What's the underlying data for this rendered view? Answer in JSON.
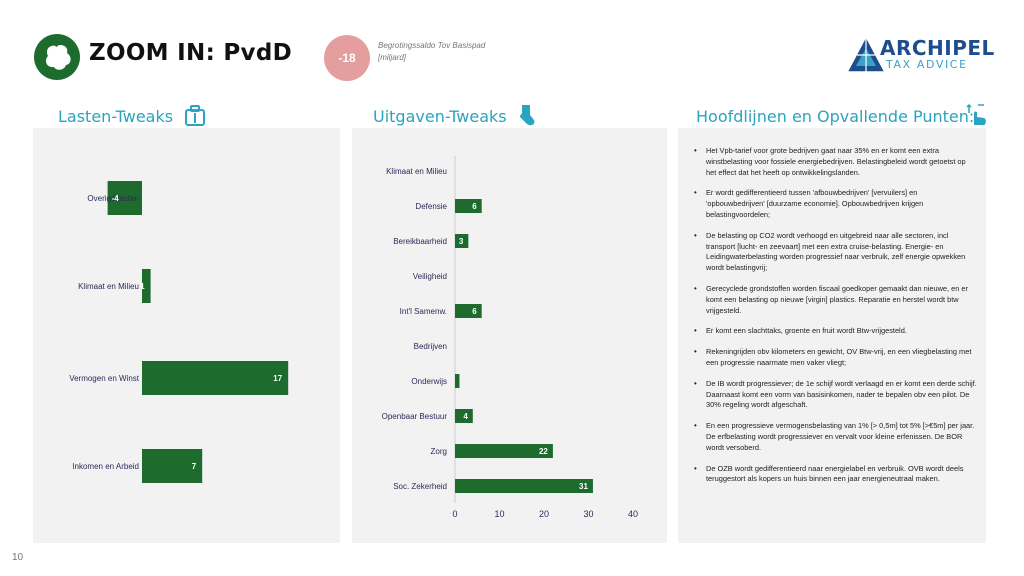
{
  "header": {
    "title": "ZOOM IN: PvdD",
    "saldo_value": "-18",
    "saldo_label_line1": "Begrotingssaldo Tov Basispad",
    "saldo_label_line2": "[miljard]",
    "brand_name": "ARCHIPEL",
    "brand_sub": "TAX ADVICE",
    "logo_color": "#1e6b2e",
    "saldo_color": "#e59e9e",
    "brand_color": "#1d4d8c"
  },
  "sections": {
    "lasten_title": "Lasten-Tweaks",
    "uitgaven_title": "Uitgaven-Tweaks",
    "hoofd_title": "Hoofdlijnen en Opvallende Punten:"
  },
  "chart_data": [
    {
      "type": "bar",
      "orientation": "horizontal",
      "categories": [
        "Overige lasten",
        "Klimaat en Milieu",
        "Vermogen en Winst",
        "Inkomen en Arbeid"
      ],
      "values": [
        -4,
        1,
        17,
        7
      ],
      "labels": [
        "-4",
        "1",
        "17",
        "7"
      ],
      "xlim": [
        -5,
        20
      ],
      "bar_color": "#1e6b2e",
      "axis_visible": false,
      "grid": false
    },
    {
      "type": "bar",
      "orientation": "horizontal",
      "categories": [
        "Klimaat en Milieu",
        "Defensie",
        "Bereikbaarheid",
        "Veiligheid",
        "Int'l Samenw.",
        "Bedrijven",
        "Onderwijs",
        "Openbaar Bestuur",
        "Zorg",
        "Soc. Zekerheid"
      ],
      "values": [
        0,
        6,
        3,
        0,
        6,
        0,
        1,
        4,
        22,
        31
      ],
      "labels": [
        "",
        "6",
        "3",
        "",
        "6",
        "",
        "",
        "4",
        "22",
        "31"
      ],
      "xticks": [
        "0",
        "10",
        "20",
        "30",
        "40"
      ],
      "xlim": [
        0,
        40
      ],
      "bar_color": "#1e6b2e",
      "grid": false
    }
  ],
  "bullets": [
    "Het Vpb-tarief voor grote bedrijven gaat naar 35% en er komt een extra winstbelasting voor fossiele energiebedrijven. Belastingbeleid wordt getoetst op het effect dat het heeft op ontwikkelingslanden.",
    "Er wordt gedifferentieerd tussen 'afbouwbedrijven' [vervuilers] en 'opbouwbedrijven' [duurzame economie]. Opbouwbedrijven krijgen belastingvoordelen;",
    "De belasting op CO2 wordt verhoogd en uitgebreid naar alle sectoren, incl transport [lucht- en zeevaart] met een extra cruise-belasting. Energie- en Leidingwaterbelasting worden progressief naar verbruik, zelf energie opwekken wordt belastingvrij;",
    "Gerecyclede grondstoffen worden fiscaal goedkoper gemaakt dan nieuwe, en er komt een belasting op nieuwe [virgin] plastics. Reparatie en herstel wordt btw vrijgesteld.",
    "Er komt een slachttaks, groente en fruit wordt Btw-vrijgesteld.",
    "Rekeningrijden obv kilometers en gewicht, OV Btw-vrij, en een vliegbelasting met een progressie naarmate men vaker vliegt;",
    "De IB wordt progressiever; de 1e schijf wordt verlaagd en er komt een derde schijf. Daarnaast komt een vorm van basisinkomen, nader te bepalen obv een pilot. De 30% regeling wordt afgeschaft.",
    "En een progressieve vermogensbelasting van 1% [> 0,5m] tot 5% [>€5m] per jaar. De erfbelasting wordt progressiever en vervalt voor kleine erfenissen. De BOR wordt versoberd.",
    "De OZB wordt gedifferentieerd naar energielabel en verbruik. OVB wordt deels teruggestort als kopers un huis binnen een jaar energieneutraal maken."
  ],
  "page_number": "10"
}
